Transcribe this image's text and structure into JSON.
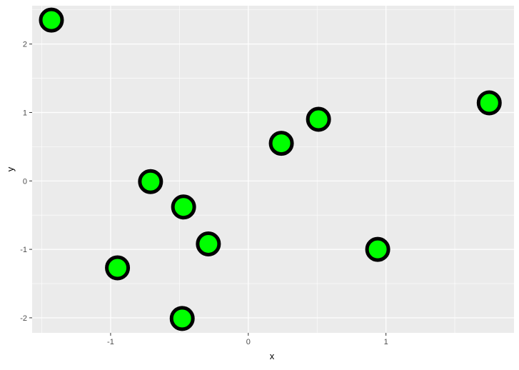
{
  "chart_data": {
    "type": "scatter",
    "xlabel": "x",
    "ylabel": "y",
    "xlim": [
      -1.57,
      1.93
    ],
    "ylim": [
      -2.22,
      2.56
    ],
    "xticks": [
      -1,
      0,
      1
    ],
    "yticks": [
      -2,
      -1,
      0,
      1,
      2
    ],
    "grid": true,
    "point_fill": "#00FF00",
    "point_stroke": "#000000",
    "panel_background": "#EBEBEB",
    "points": [
      {
        "x": -1.43,
        "y": 2.35
      },
      {
        "x": 1.75,
        "y": 1.14
      },
      {
        "x": 0.51,
        "y": 0.9
      },
      {
        "x": 0.24,
        "y": 0.55
      },
      {
        "x": -0.71,
        "y": -0.01
      },
      {
        "x": -0.47,
        "y": -0.38
      },
      {
        "x": -0.29,
        "y": -0.92
      },
      {
        "x": -0.95,
        "y": -1.27
      },
      {
        "x": 0.94,
        "y": -1.0
      },
      {
        "x": -0.48,
        "y": -2.01
      }
    ]
  }
}
